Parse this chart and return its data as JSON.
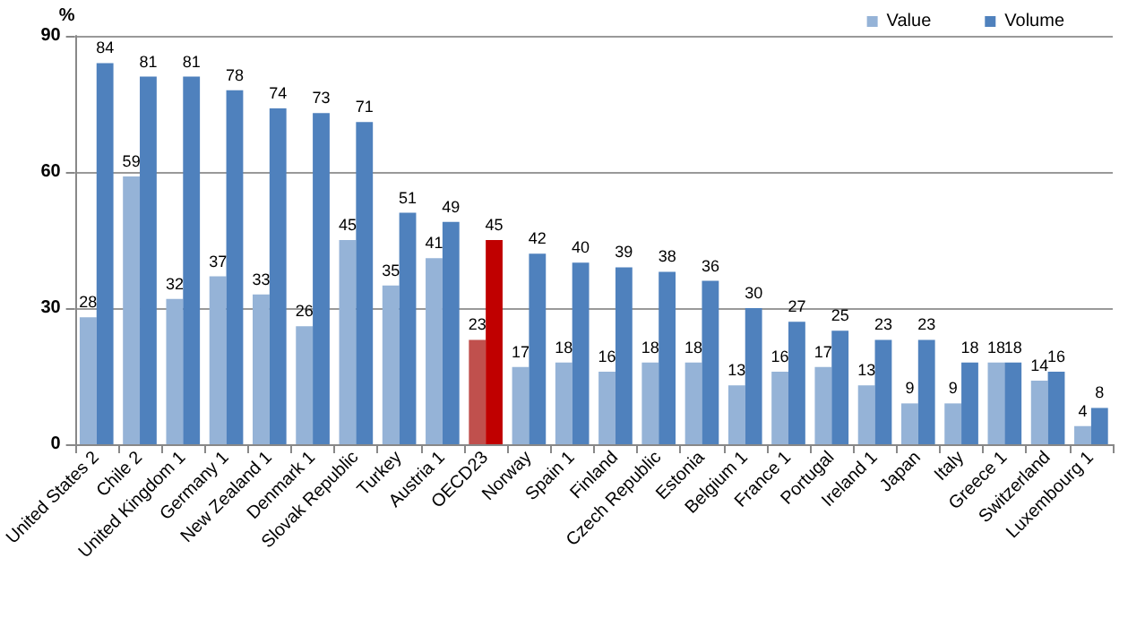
{
  "chart_data": {
    "type": "bar",
    "ylabel": "%",
    "categories": [
      "United States 2",
      "Chile 2",
      "United Kingdom 1",
      "Germany 1",
      "New Zealand 1",
      "Denmark 1",
      "Slovak Republic",
      "Turkey",
      "Austria 1",
      "OECD23",
      "Norway",
      "Spain 1",
      "Finland",
      "Czech Republic",
      "Estonia",
      "Belgium 1",
      "France 1",
      "Portugal",
      "Ireland 1",
      "Japan",
      "Italy",
      "Greece 1",
      "Switzerland",
      "Luxembourg 1"
    ],
    "series": [
      {
        "name": "Value",
        "color": "#95b3d7",
        "colors": [
          "#95b3d7",
          "#95b3d7",
          "#95b3d7",
          "#95b3d7",
          "#95b3d7",
          "#95b3d7",
          "#95b3d7",
          "#95b3d7",
          "#95b3d7",
          "#c0504d",
          "#95b3d7",
          "#95b3d7",
          "#95b3d7",
          "#95b3d7",
          "#95b3d7",
          "#95b3d7",
          "#95b3d7",
          "#95b3d7",
          "#95b3d7",
          "#95b3d7",
          "#95b3d7",
          "#95b3d7",
          "#95b3d7",
          "#95b3d7"
        ],
        "values": [
          28,
          59,
          32,
          37,
          33,
          26,
          45,
          35,
          41,
          23,
          17,
          18,
          16,
          18,
          18,
          13,
          16,
          17,
          13,
          9,
          9,
          18,
          14,
          4
        ]
      },
      {
        "name": "Volume",
        "color": "#4f81bd",
        "colors": [
          "#4f81bd",
          "#4f81bd",
          "#4f81bd",
          "#4f81bd",
          "#4f81bd",
          "#4f81bd",
          "#4f81bd",
          "#4f81bd",
          "#4f81bd",
          "#c00000",
          "#4f81bd",
          "#4f81bd",
          "#4f81bd",
          "#4f81bd",
          "#4f81bd",
          "#4f81bd",
          "#4f81bd",
          "#4f81bd",
          "#4f81bd",
          "#4f81bd",
          "#4f81bd",
          "#4f81bd",
          "#4f81bd",
          "#4f81bd"
        ],
        "values": [
          84,
          81,
          81,
          78,
          74,
          73,
          71,
          51,
          49,
          45,
          42,
          40,
          39,
          38,
          36,
          30,
          27,
          25,
          23,
          23,
          18,
          18,
          16,
          8
        ]
      }
    ],
    "ylim": [
      0,
      90
    ],
    "yticks": [
      0,
      30,
      60,
      90
    ],
    "grid": "y",
    "legend": "top right",
    "data_labels": true
  }
}
